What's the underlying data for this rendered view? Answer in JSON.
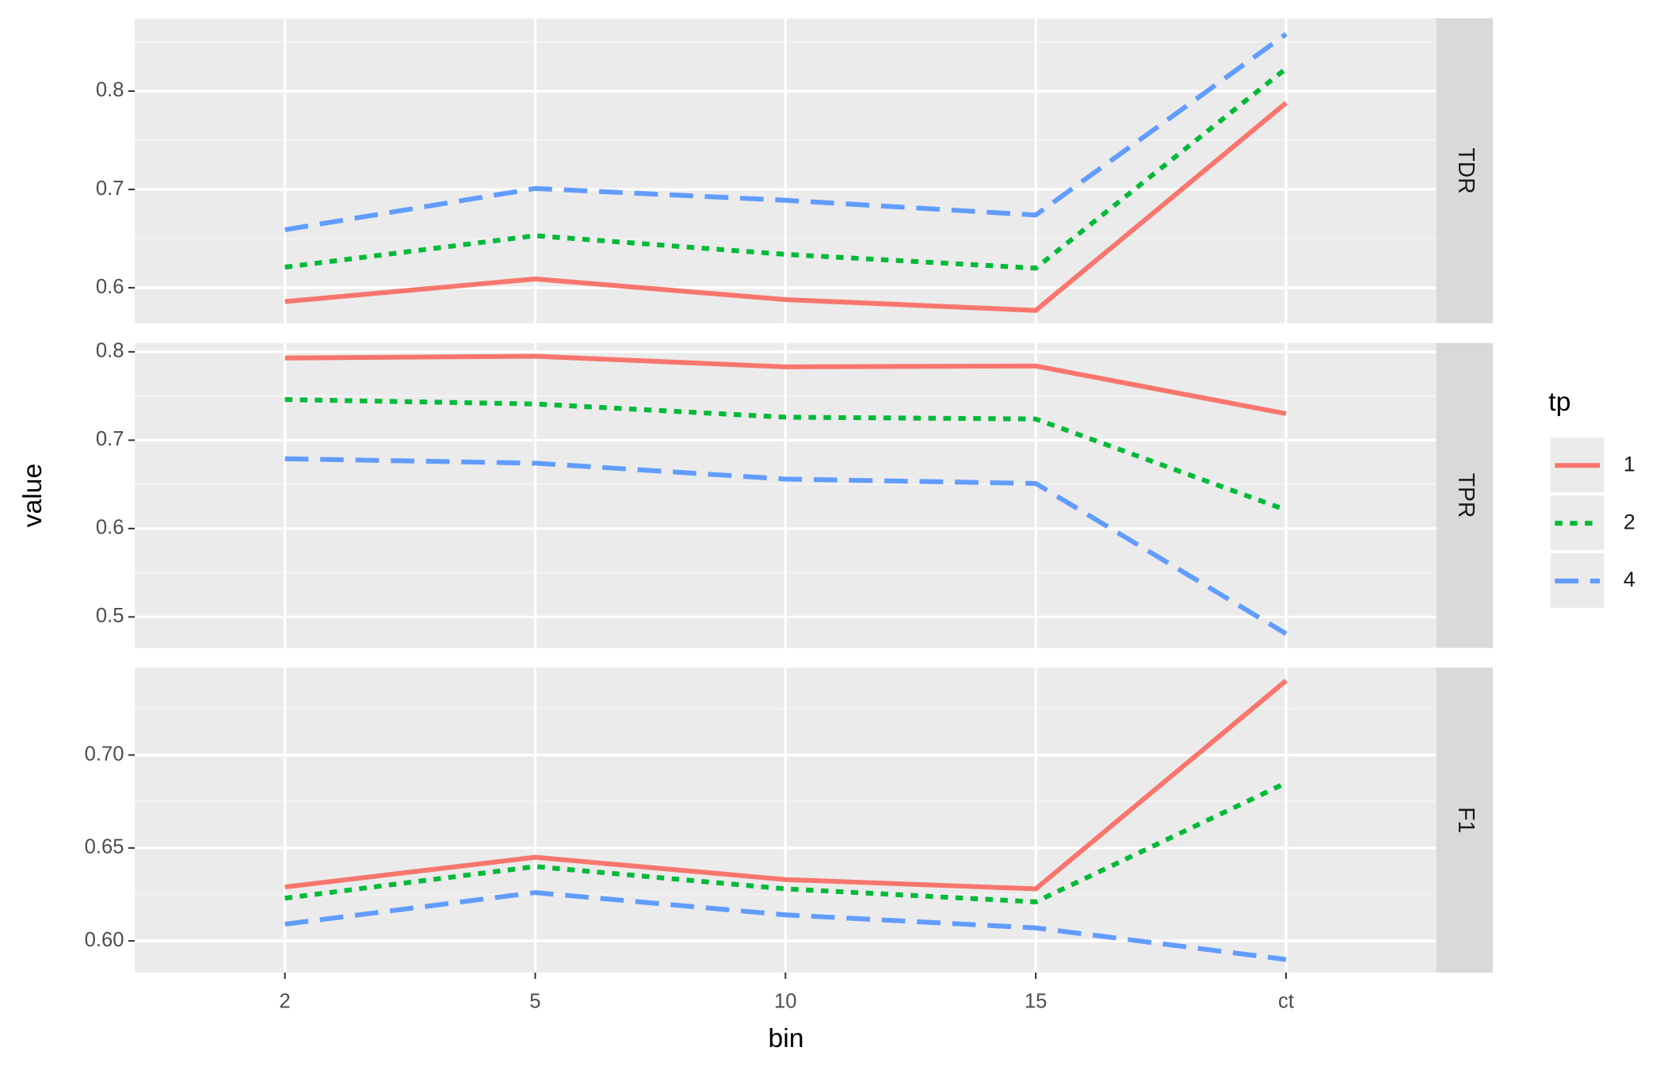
{
  "xlabel": "bin",
  "ylabel": "value",
  "legend": {
    "title": "tp",
    "position": "right"
  },
  "chart_data": [
    {
      "type": "line",
      "facet": "TDR",
      "categories": [
        "2",
        "5",
        "10",
        "15",
        "ct"
      ],
      "ylim": [
        0.564,
        0.874
      ],
      "yticks": [
        0.6,
        0.7,
        0.8
      ],
      "grid": true,
      "series": [
        {
          "name": "1",
          "color": "#F8766D",
          "linetype": "solid",
          "values": [
            0.586,
            0.609,
            0.588,
            0.577,
            0.788
          ]
        },
        {
          "name": "2",
          "color": "#00BA38",
          "linetype": "dotted",
          "values": [
            0.621,
            0.653,
            0.634,
            0.62,
            0.823
          ]
        },
        {
          "name": "4",
          "color": "#619CFF",
          "linetype": "dashed",
          "values": [
            0.659,
            0.701,
            0.689,
            0.674,
            0.858
          ]
        }
      ]
    },
    {
      "type": "line",
      "facet": "TPR",
      "categories": [
        "2",
        "5",
        "10",
        "15",
        "ct"
      ],
      "ylim": [
        0.465,
        0.81
      ],
      "yticks": [
        0.5,
        0.6,
        0.7,
        0.8
      ],
      "grid": true,
      "series": [
        {
          "name": "1",
          "color": "#F8766D",
          "linetype": "solid",
          "values": [
            0.793,
            0.795,
            0.783,
            0.784,
            0.73
          ]
        },
        {
          "name": "2",
          "color": "#00BA38",
          "linetype": "dotted",
          "values": [
            0.746,
            0.741,
            0.726,
            0.724,
            0.621
          ]
        },
        {
          "name": "4",
          "color": "#619CFF",
          "linetype": "dashed",
          "values": [
            0.679,
            0.674,
            0.656,
            0.651,
            0.481
          ]
        }
      ]
    },
    {
      "type": "line",
      "facet": "F1",
      "categories": [
        "2",
        "5",
        "10",
        "15",
        "ct"
      ],
      "ylim": [
        0.583,
        0.747
      ],
      "yticks": [
        {
          "value": 0.6,
          "label": "0.60"
        },
        0.65,
        {
          "value": 0.7,
          "label": "0.70"
        }
      ],
      "grid": true,
      "series": [
        {
          "name": "1",
          "color": "#F8766D",
          "linetype": "solid",
          "values": [
            0.629,
            0.645,
            0.633,
            0.628,
            0.74
          ]
        },
        {
          "name": "2",
          "color": "#00BA38",
          "linetype": "dotted",
          "values": [
            0.623,
            0.64,
            0.628,
            0.621,
            0.685
          ]
        },
        {
          "name": "4",
          "color": "#619CFF",
          "linetype": "dashed",
          "values": [
            0.609,
            0.626,
            0.614,
            0.607,
            0.59
          ]
        }
      ]
    }
  ]
}
